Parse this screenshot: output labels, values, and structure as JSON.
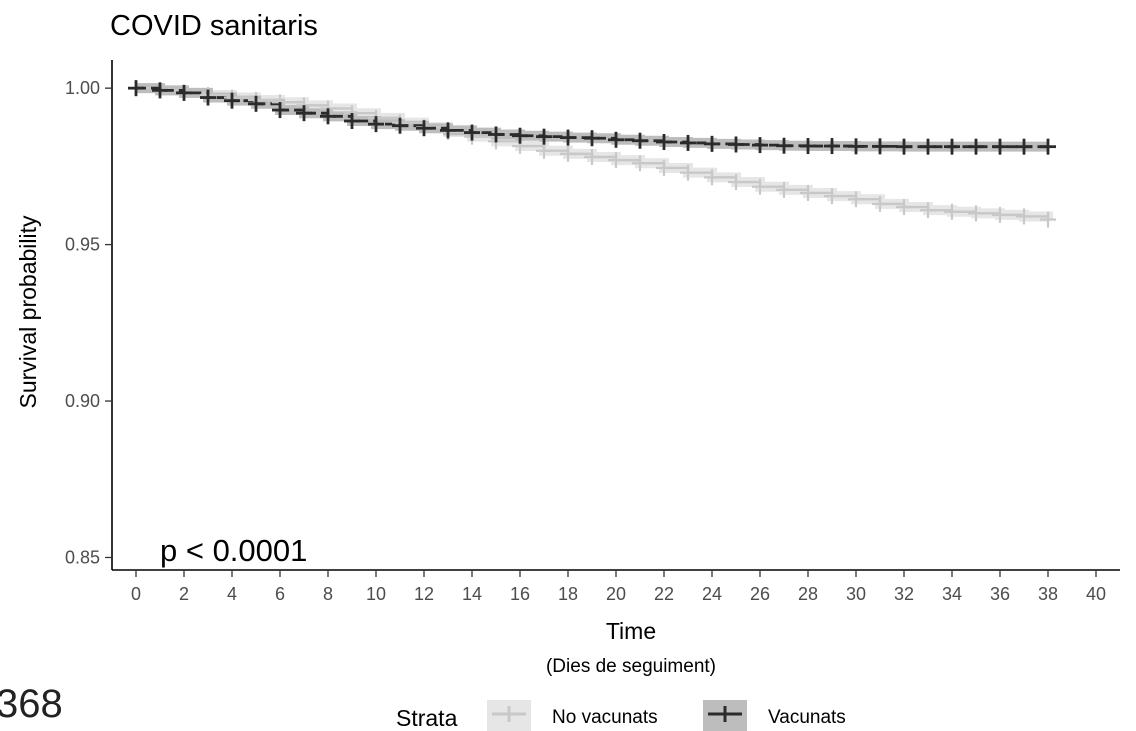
{
  "chart_data": {
    "type": "line",
    "title": "COVID sanitaris",
    "xlabel": "Time",
    "xlabel_sub": "(Dies de seguiment)",
    "ylabel": "Survival probability",
    "xlim": [
      -1,
      41
    ],
    "ylim": [
      0.846,
      1.009
    ],
    "x_ticks": [
      0,
      2,
      4,
      6,
      8,
      10,
      12,
      14,
      16,
      18,
      20,
      22,
      24,
      26,
      28,
      30,
      32,
      34,
      36,
      38,
      40
    ],
    "y_ticks": [
      0.85,
      0.9,
      0.95,
      1.0
    ],
    "y_tick_labels": [
      "0.85",
      "0.90",
      "0.95",
      "1.00"
    ],
    "grid": false,
    "annotation": "p < 0.0001",
    "legend": {
      "title": "Strata",
      "position": "bottom"
    },
    "series": [
      {
        "name": "No vacunats",
        "color": "#c8c8c8",
        "band_color": "#e6e6e6",
        "x": [
          0,
          1,
          2,
          3,
          4,
          5,
          6,
          7,
          8,
          9,
          10,
          11,
          12,
          13,
          14,
          15,
          16,
          17,
          18,
          19,
          20,
          21,
          22,
          23,
          24,
          25,
          26,
          27,
          28,
          29,
          30,
          31,
          32,
          33,
          34,
          35,
          36,
          37,
          38
        ],
        "values": [
          1.0,
          0.9993,
          0.9985,
          0.9978,
          0.997,
          0.9962,
          0.9955,
          0.9945,
          0.9935,
          0.992,
          0.9905,
          0.989,
          0.9875,
          0.986,
          0.9845,
          0.983,
          0.9815,
          0.98,
          0.979,
          0.978,
          0.977,
          0.976,
          0.9745,
          0.973,
          0.9715,
          0.97,
          0.9685,
          0.9675,
          0.9665,
          0.9655,
          0.9645,
          0.963,
          0.962,
          0.961,
          0.9605,
          0.96,
          0.9595,
          0.959,
          0.958
        ]
      },
      {
        "name": "Vacunats",
        "color": "#2b2b2b",
        "band_color": "#bdbdbd",
        "x": [
          0,
          1,
          2,
          3,
          4,
          5,
          6,
          7,
          8,
          9,
          10,
          11,
          12,
          13,
          14,
          15,
          16,
          17,
          18,
          19,
          20,
          21,
          22,
          23,
          24,
          25,
          26,
          27,
          28,
          29,
          30,
          31,
          32,
          33,
          34,
          35,
          36,
          37,
          38
        ],
        "values": [
          1.0,
          0.9993,
          0.9985,
          0.997,
          0.996,
          0.995,
          0.993,
          0.992,
          0.991,
          0.9895,
          0.9885,
          0.988,
          0.9872,
          0.9865,
          0.9858,
          0.9852,
          0.9848,
          0.9845,
          0.9842,
          0.984,
          0.9835,
          0.9832,
          0.9828,
          0.9825,
          0.9822,
          0.982,
          0.9818,
          0.9816,
          0.9815,
          0.9815,
          0.9814,
          0.9814,
          0.9813,
          0.9813,
          0.9813,
          0.9813,
          0.9813,
          0.9813,
          0.9813
        ]
      }
    ]
  },
  "corner_text": "368"
}
